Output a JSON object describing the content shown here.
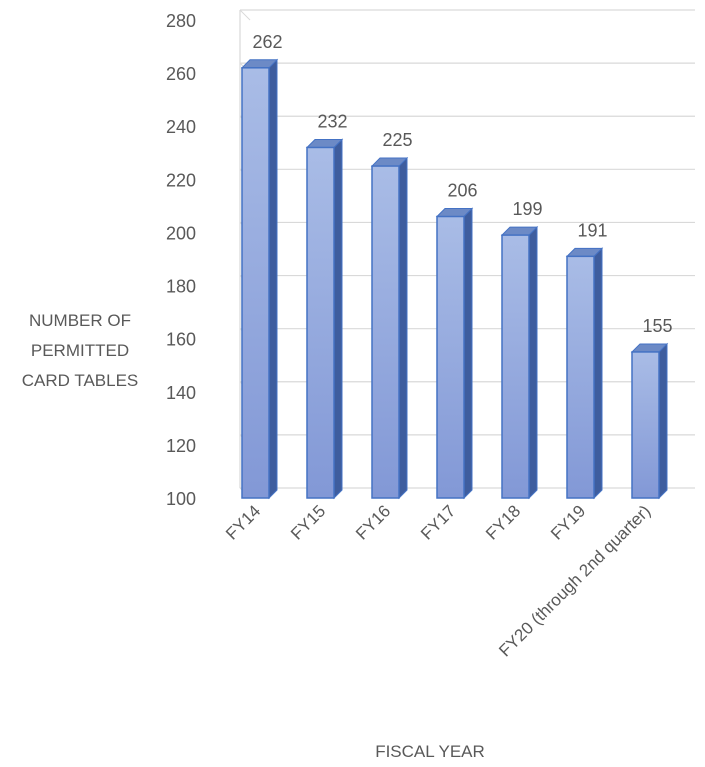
{
  "chart_data": {
    "type": "bar",
    "categories": [
      "FY14",
      "FY15",
      "FY16",
      "FY17",
      "FY18",
      "FY19",
      "FY20 (through 2nd quarter)"
    ],
    "values": [
      262,
      232,
      225,
      206,
      199,
      191,
      155
    ],
    "ylabel_lines": [
      "NUMBER OF",
      "PERMITTED",
      "CARD TABLES"
    ],
    "xlabel": "FISCAL YEAR",
    "ylim": [
      100,
      280
    ],
    "yticks": [
      100,
      120,
      140,
      160,
      180,
      200,
      220,
      240,
      260,
      280
    ],
    "grid": true,
    "style": "3d-column",
    "colors": {
      "bar_front": "#8faadc",
      "bar_side": "#3e5d9e",
      "bar_top": "#6c8ac6",
      "bar_stroke": "#4472c4",
      "grid": "#d9d9d9",
      "text": "#595959"
    }
  }
}
